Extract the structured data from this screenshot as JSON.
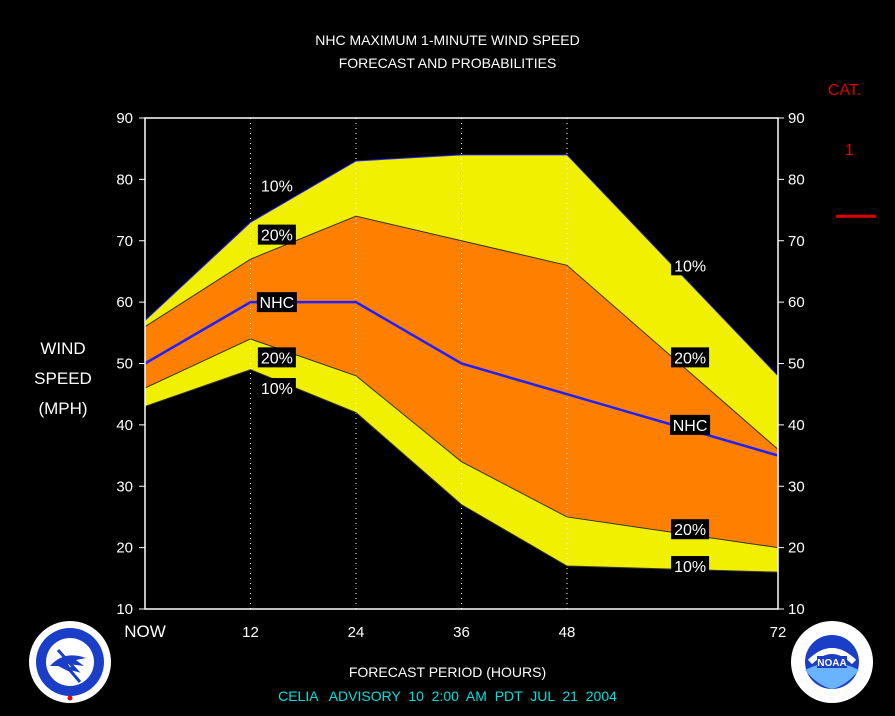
{
  "title": {
    "line1": "NHC MAXIMUM 1-MINUTE WIND SPEED",
    "line2": "FORECAST AND PROBABILITIES"
  },
  "category": {
    "header": "CAT.",
    "value": "1"
  },
  "y_axis_label": [
    "WIND",
    "SPEED",
    "(MPH)"
  ],
  "x_axis_label": "FORECAST PERIOD (HOURS)",
  "advisory": "CELIA   ADVISORY  10  2:00  AM  PDT  JUL  21  2004",
  "logos": {
    "left": "national-weather-service-logo",
    "right": "noaa-logo"
  },
  "colors": {
    "outer_band": "#f0f000",
    "inner_band": "#ff8000",
    "nhc_line": "#2020ff",
    "category_marker": "#e00000",
    "footer_text": "#00e0e0"
  },
  "chart_data": {
    "type": "area",
    "x": [
      0,
      12,
      24,
      36,
      48,
      72
    ],
    "xticklabels": [
      "NOW",
      "12",
      "24",
      "36",
      "48",
      "72"
    ],
    "ylim": [
      10,
      90
    ],
    "yticks": [
      10,
      20,
      30,
      40,
      50,
      60,
      70,
      80,
      90
    ],
    "series": [
      {
        "name": "10%",
        "values": [
          57,
          73,
          83,
          84,
          84,
          48
        ]
      },
      {
        "name": "20%",
        "values": [
          56,
          67,
          74,
          70,
          66,
          36
        ]
      },
      {
        "name": "NHC",
        "values": [
          50,
          60,
          60,
          50,
          45,
          35
        ]
      },
      {
        "name": "20%",
        "values": [
          46,
          54,
          48,
          34,
          25,
          20
        ]
      },
      {
        "name": "10%",
        "values": [
          43,
          49,
          42,
          27,
          17,
          16
        ]
      }
    ],
    "upper_labels": [
      {
        "text": "10%",
        "x": 15,
        "y": 79
      },
      {
        "text": "20%",
        "x": 15,
        "y": 71
      },
      {
        "text": "NHC",
        "x": 15,
        "y": 60
      },
      {
        "text": "20%",
        "x": 15,
        "y": 51
      },
      {
        "text": "10%",
        "x": 15,
        "y": 46
      }
    ],
    "lower_labels": [
      {
        "text": "10%",
        "x": 62,
        "y": 66
      },
      {
        "text": "20%",
        "x": 62,
        "y": 51
      },
      {
        "text": "NHC",
        "x": 62,
        "y": 40
      },
      {
        "text": "20%",
        "x": 62,
        "y": 23
      },
      {
        "text": "10%",
        "x": 62,
        "y": 17
      }
    ],
    "category_line_value": 74,
    "grid": "dotted vertical at 12, 24, 36, 48"
  }
}
